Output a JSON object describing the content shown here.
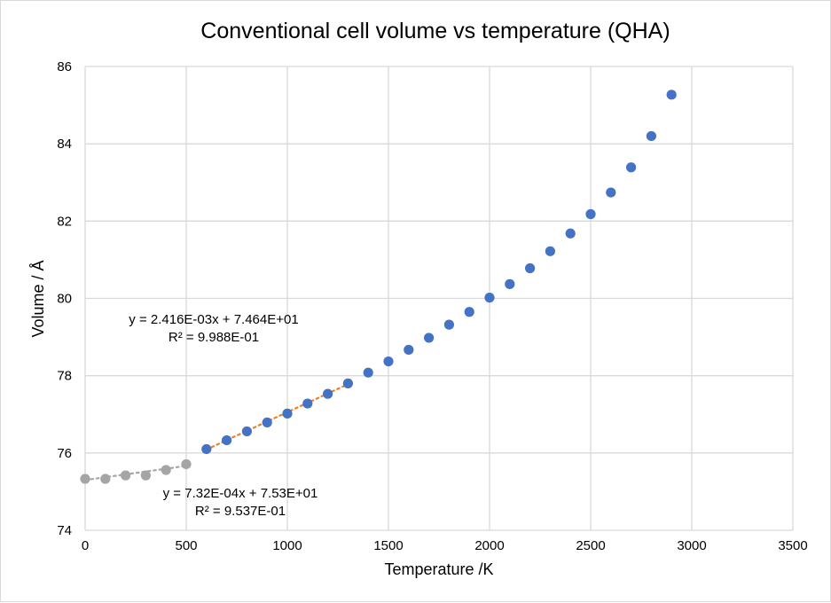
{
  "chart_data": {
    "type": "scatter",
    "title": "Conventional cell volume vs temperature (QHA)",
    "xlabel": "Temperature /K",
    "ylabel": "Volume / Å",
    "xlim": [
      0,
      3500
    ],
    "ylim": [
      74,
      86
    ],
    "x_ticks": [
      0,
      500,
      1000,
      1500,
      2000,
      2500,
      3000,
      3500
    ],
    "y_ticks": [
      74,
      76,
      78,
      80,
      82,
      84,
      86
    ],
    "grid": true,
    "series": [
      {
        "color": "#a5a5a5",
        "x": [
          0,
          100,
          200,
          300,
          400,
          500
        ],
        "y": [
          75.33,
          75.33,
          75.42,
          75.42,
          75.56,
          75.71
        ]
      },
      {
        "color": "#4472c4",
        "x": [
          600,
          700,
          800,
          900,
          1000,
          1100,
          1200,
          1300,
          1400,
          1500,
          1600,
          1700,
          1800,
          1900,
          2000,
          2100,
          2200,
          2300,
          2400,
          2500,
          2600,
          2700,
          2800,
          2900
        ],
        "y": [
          76.1,
          76.33,
          76.56,
          76.79,
          77.02,
          77.28,
          77.53,
          77.8,
          78.08,
          78.37,
          78.67,
          78.98,
          79.32,
          79.65,
          80.02,
          80.37,
          80.78,
          81.22,
          81.68,
          82.18,
          82.74,
          83.39,
          84.2,
          85.27
        ]
      }
    ],
    "trendlines": [
      {
        "type": "linear",
        "color": "#a5a5a5",
        "x_range": [
          0,
          500
        ],
        "slope": 0.000732,
        "intercept": 75.3,
        "equation": "y = 7.32E-04x  + 7.53E+01",
        "r2": "R² = 9.537E-01"
      },
      {
        "type": "linear",
        "color": "#ed7d31",
        "x_range": [
          600,
          1300
        ],
        "slope": 0.002416,
        "intercept": 74.64,
        "equation": "y = 2.416E-03x  + 7.464E+01",
        "r2": "R² = 9.988E-01"
      }
    ]
  }
}
